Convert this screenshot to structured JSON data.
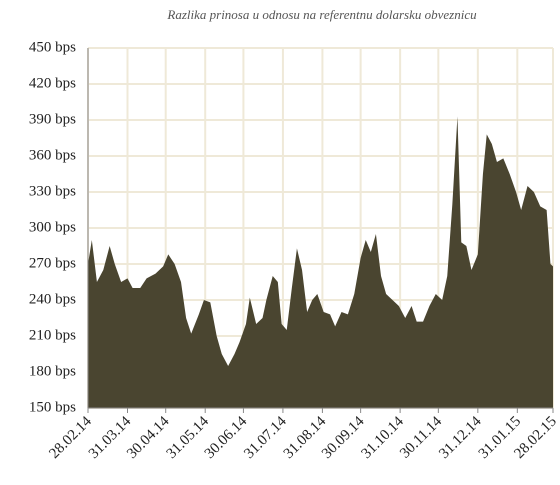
{
  "chart_data": {
    "type": "area",
    "title": "Razlika prinosa u odnosu na referentnu dolarsku obveznicu",
    "color": "#4a4530",
    "grid": true,
    "x": [
      "2014-02-28",
      "2014-03-03",
      "2014-03-07",
      "2014-03-12",
      "2014-03-17",
      "2014-03-21",
      "2014-03-26",
      "2014-03-31",
      "2014-04-04",
      "2014-04-10",
      "2014-04-15",
      "2014-04-22",
      "2014-04-28",
      "2014-05-02",
      "2014-05-07",
      "2014-05-12",
      "2014-05-16",
      "2014-05-20",
      "2014-05-26",
      "2014-05-30",
      "2014-06-04",
      "2014-06-09",
      "2014-06-13",
      "2014-06-18",
      "2014-06-23",
      "2014-06-27",
      "2014-07-02",
      "2014-07-05",
      "2014-07-10",
      "2014-07-15",
      "2014-07-18",
      "2014-07-23",
      "2014-07-27",
      "2014-07-30",
      "2014-08-03",
      "2014-08-07",
      "2014-08-11",
      "2014-08-15",
      "2014-08-19",
      "2014-08-23",
      "2014-08-27",
      "2014-09-01",
      "2014-09-06",
      "2014-09-10",
      "2014-09-15",
      "2014-09-20",
      "2014-09-25",
      "2014-09-30",
      "2014-10-04",
      "2014-10-08",
      "2014-10-12",
      "2014-10-16",
      "2014-10-20",
      "2014-10-25",
      "2014-10-30",
      "2014-11-04",
      "2014-11-09",
      "2014-11-13",
      "2014-11-18",
      "2014-11-23",
      "2014-11-28",
      "2014-12-03",
      "2014-12-07",
      "2014-12-11",
      "2014-12-15",
      "2014-12-18",
      "2014-12-22",
      "2014-12-26",
      "2014-12-31",
      "2015-01-04",
      "2015-01-07",
      "2015-01-11",
      "2015-01-15",
      "2015-01-20",
      "2015-01-25",
      "2015-01-30",
      "2015-02-03",
      "2015-02-08",
      "2015-02-13",
      "2015-02-18",
      "2015-02-23",
      "2015-02-26",
      "2015-02-28"
    ],
    "values": [
      270,
      290,
      255,
      265,
      285,
      270,
      255,
      258,
      250,
      250,
      258,
      262,
      268,
      278,
      270,
      255,
      225,
      212,
      228,
      240,
      238,
      210,
      195,
      185,
      195,
      205,
      220,
      242,
      220,
      225,
      240,
      260,
      255,
      220,
      215,
      250,
      283,
      265,
      230,
      240,
      245,
      230,
      228,
      218,
      230,
      228,
      245,
      275,
      290,
      280,
      295,
      260,
      245,
      240,
      235,
      225,
      235,
      222,
      222,
      235,
      245,
      240,
      260,
      320,
      393,
      288,
      285,
      265,
      278,
      345,
      378,
      370,
      355,
      358,
      345,
      330,
      315,
      335,
      330,
      318,
      315,
      270,
      268
    ],
    "xlim": [
      "2014-02-28",
      "2015-02-28"
    ],
    "xticks": [
      {
        "value": "2014-02-28",
        "label": "28.02.14"
      },
      {
        "value": "2014-03-31",
        "label": "31.03.14"
      },
      {
        "value": "2014-04-30",
        "label": "30.04.14"
      },
      {
        "value": "2014-05-31",
        "label": "31.05.14"
      },
      {
        "value": "2014-06-30",
        "label": "30.06.14"
      },
      {
        "value": "2014-07-31",
        "label": "31.07.14"
      },
      {
        "value": "2014-08-31",
        "label": "31.08.14"
      },
      {
        "value": "2014-09-30",
        "label": "30.09.14"
      },
      {
        "value": "2014-10-31",
        "label": "31.10.14"
      },
      {
        "value": "2014-11-30",
        "label": "30.11.14"
      },
      {
        "value": "2014-12-31",
        "label": "31.12.14"
      },
      {
        "value": "2015-01-31",
        "label": "31.01.15"
      },
      {
        "value": "2015-02-28",
        "label": "28.02.15"
      }
    ],
    "ylim": [
      150,
      450
    ],
    "yticks": [
      {
        "value": 150,
        "label": "150 bps"
      },
      {
        "value": 180,
        "label": "180 bps"
      },
      {
        "value": 210,
        "label": "210 bps"
      },
      {
        "value": 240,
        "label": "240 bps"
      },
      {
        "value": 270,
        "label": "270 bps"
      },
      {
        "value": 300,
        "label": "300 bps"
      },
      {
        "value": 330,
        "label": "330 bps"
      },
      {
        "value": 360,
        "label": "360 bps"
      },
      {
        "value": 390,
        "label": "390 bps"
      },
      {
        "value": 420,
        "label": "420 bps"
      },
      {
        "value": 450,
        "label": "450 bps"
      }
    ]
  }
}
